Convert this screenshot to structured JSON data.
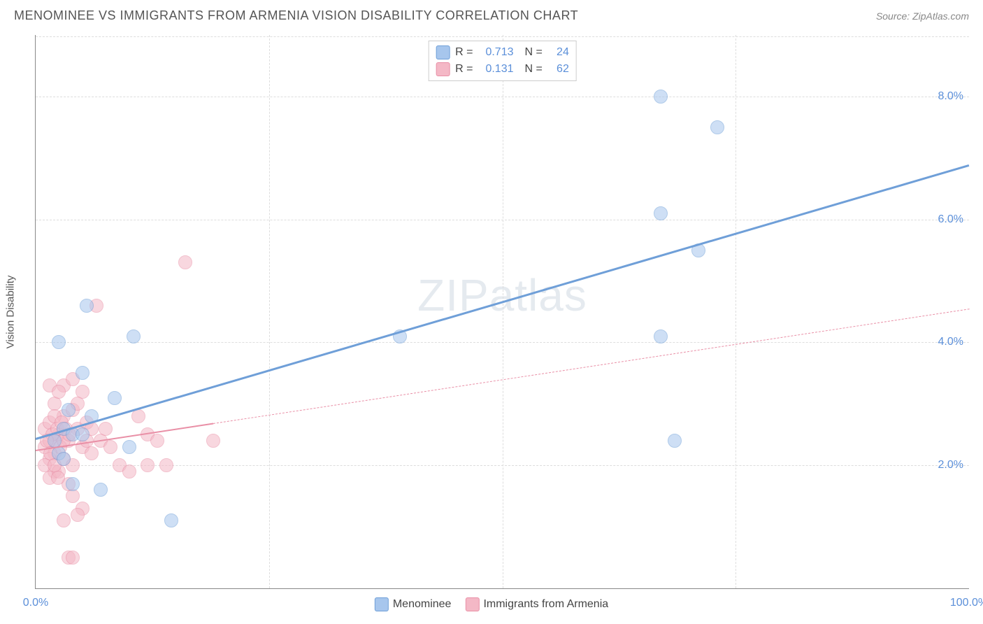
{
  "header": {
    "title": "MENOMINEE VS IMMIGRANTS FROM ARMENIA VISION DISABILITY CORRELATION CHART",
    "source": "Source: ZipAtlas.com"
  },
  "watermark": {
    "part1": "ZIP",
    "part2": "atlas"
  },
  "chart": {
    "type": "scatter",
    "ylabel": "Vision Disability",
    "xlim": [
      0,
      100
    ],
    "ylim": [
      0,
      9
    ],
    "x_ticks": [
      {
        "pos": 0,
        "label": "0.0%"
      },
      {
        "pos": 100,
        "label": "100.0%"
      }
    ],
    "x_grid": [
      25,
      50,
      75
    ],
    "y_ticks": [
      {
        "pos": 2.0,
        "label": "2.0%"
      },
      {
        "pos": 4.0,
        "label": "4.0%"
      },
      {
        "pos": 6.0,
        "label": "6.0%"
      },
      {
        "pos": 8.0,
        "label": "8.0%"
      }
    ],
    "background_color": "#ffffff",
    "grid_color": "#dddddd",
    "dot_radius": 10,
    "dot_opacity": 0.55,
    "series": [
      {
        "name": "Menominee",
        "color_fill": "#a7c6ed",
        "color_stroke": "#6f9fd8",
        "R": "0.713",
        "N": "24",
        "regression": {
          "x1": 0,
          "y1": 2.45,
          "x2": 100,
          "y2": 6.9,
          "solid_until_x": 100,
          "line_width": 3
        },
        "points": [
          {
            "x": 2.5,
            "y": 4.0
          },
          {
            "x": 5.5,
            "y": 4.6
          },
          {
            "x": 5.0,
            "y": 3.5
          },
          {
            "x": 10.5,
            "y": 4.1
          },
          {
            "x": 8.5,
            "y": 3.1
          },
          {
            "x": 6.0,
            "y": 2.8
          },
          {
            "x": 10.0,
            "y": 2.3
          },
          {
            "x": 7.0,
            "y": 1.6
          },
          {
            "x": 4.0,
            "y": 1.7
          },
          {
            "x": 14.5,
            "y": 1.1
          },
          {
            "x": 3.0,
            "y": 2.6
          },
          {
            "x": 2.0,
            "y": 2.4
          },
          {
            "x": 2.5,
            "y": 2.2
          },
          {
            "x": 3.0,
            "y": 2.1
          },
          {
            "x": 4.0,
            "y": 2.5
          },
          {
            "x": 39.0,
            "y": 4.1
          },
          {
            "x": 67.0,
            "y": 8.0
          },
          {
            "x": 73.0,
            "y": 7.5
          },
          {
            "x": 67.0,
            "y": 6.1
          },
          {
            "x": 71.0,
            "y": 5.5
          },
          {
            "x": 67.0,
            "y": 4.1
          },
          {
            "x": 68.5,
            "y": 2.4
          },
          {
            "x": 3.5,
            "y": 2.9
          },
          {
            "x": 5.0,
            "y": 2.5
          }
        ]
      },
      {
        "name": "Immigrants from Armenia",
        "color_fill": "#f4b8c6",
        "color_stroke": "#e98fa6",
        "R": "0.131",
        "N": "62",
        "regression": {
          "x1": 0,
          "y1": 2.25,
          "x2": 100,
          "y2": 4.55,
          "solid_until_x": 19,
          "line_width": 2
        },
        "points": [
          {
            "x": 1.0,
            "y": 2.3
          },
          {
            "x": 1.5,
            "y": 2.4
          },
          {
            "x": 2.0,
            "y": 2.2
          },
          {
            "x": 2.5,
            "y": 2.5
          },
          {
            "x": 3.0,
            "y": 2.1
          },
          {
            "x": 3.5,
            "y": 2.4
          },
          {
            "x": 4.0,
            "y": 2.0
          },
          {
            "x": 4.5,
            "y": 2.6
          },
          {
            "x": 5.0,
            "y": 2.3
          },
          {
            "x": 5.5,
            "y": 2.7
          },
          {
            "x": 6.0,
            "y": 2.2
          },
          {
            "x": 3.0,
            "y": 3.3
          },
          {
            "x": 4.0,
            "y": 3.4
          },
          {
            "x": 5.0,
            "y": 3.2
          },
          {
            "x": 6.5,
            "y": 4.6
          },
          {
            "x": 1.5,
            "y": 3.3
          },
          {
            "x": 2.0,
            "y": 3.0
          },
          {
            "x": 2.5,
            "y": 3.2
          },
          {
            "x": 3.0,
            "y": 2.8
          },
          {
            "x": 4.0,
            "y": 2.9
          },
          {
            "x": 4.5,
            "y": 3.0
          },
          {
            "x": 16.0,
            "y": 5.3
          },
          {
            "x": 11.0,
            "y": 2.8
          },
          {
            "x": 12.0,
            "y": 2.5
          },
          {
            "x": 13.0,
            "y": 2.4
          },
          {
            "x": 19.0,
            "y": 2.4
          },
          {
            "x": 9.0,
            "y": 2.0
          },
          {
            "x": 10.0,
            "y": 1.9
          },
          {
            "x": 12.0,
            "y": 2.0
          },
          {
            "x": 14.0,
            "y": 2.0
          },
          {
            "x": 3.5,
            "y": 1.7
          },
          {
            "x": 4.0,
            "y": 1.5
          },
          {
            "x": 5.0,
            "y": 1.3
          },
          {
            "x": 4.5,
            "y": 1.2
          },
          {
            "x": 3.0,
            "y": 1.1
          },
          {
            "x": 3.5,
            "y": 0.5
          },
          {
            "x": 4.0,
            "y": 0.5
          },
          {
            "x": 1.5,
            "y": 2.1
          },
          {
            "x": 2.0,
            "y": 1.9
          },
          {
            "x": 1.0,
            "y": 2.0
          },
          {
            "x": 1.5,
            "y": 1.8
          },
          {
            "x": 2.5,
            "y": 1.9
          },
          {
            "x": 1.0,
            "y": 2.6
          },
          {
            "x": 1.5,
            "y": 2.7
          },
          {
            "x": 2.0,
            "y": 2.8
          },
          {
            "x": 2.2,
            "y": 2.4
          },
          {
            "x": 2.6,
            "y": 2.3
          },
          {
            "x": 3.0,
            "y": 2.4
          },
          {
            "x": 1.8,
            "y": 2.5
          },
          {
            "x": 2.3,
            "y": 2.6
          },
          {
            "x": 1.2,
            "y": 2.4
          },
          {
            "x": 1.6,
            "y": 2.2
          },
          {
            "x": 2.0,
            "y": 2.0
          },
          {
            "x": 2.4,
            "y": 1.8
          },
          {
            "x": 5.5,
            "y": 2.4
          },
          {
            "x": 6.0,
            "y": 2.6
          },
          {
            "x": 7.0,
            "y": 2.4
          },
          {
            "x": 7.5,
            "y": 2.6
          },
          {
            "x": 8.0,
            "y": 2.3
          },
          {
            "x": 2.8,
            "y": 2.7
          },
          {
            "x": 3.2,
            "y": 2.6
          },
          {
            "x": 3.6,
            "y": 2.5
          }
        ]
      }
    ]
  },
  "legend_bottom": [
    {
      "label": "Menominee",
      "fill": "#a7c6ed",
      "stroke": "#6f9fd8"
    },
    {
      "label": "Immigrants from Armenia",
      "fill": "#f4b8c6",
      "stroke": "#e98fa6"
    }
  ]
}
